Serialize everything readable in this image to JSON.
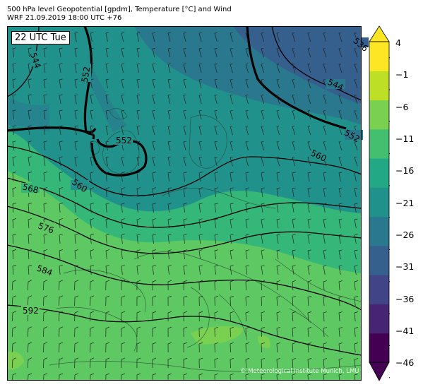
{
  "header": {
    "title": "500 hPa level Geopotential [gpdm], Temperature [°C] and Wind",
    "subtitle": "WRF 21.09.2019 18:00 UTC +76"
  },
  "time_label": "22 UTC Tue",
  "credit": "© Meteorological Institute Munich, LMU",
  "colorbar": {
    "ticks": [
      "4",
      "−1",
      "−6",
      "−11",
      "−16",
      "−21",
      "−26",
      "−31",
      "−36",
      "−41",
      "−46"
    ],
    "colors_bottom_to_top": [
      "#440154",
      "#482475",
      "#414487",
      "#355f8d",
      "#2a788e",
      "#21918c",
      "#22a884",
      "#44bf70",
      "#7ad151",
      "#bddf26",
      "#fde725"
    ]
  },
  "contour_labels": [
    "536",
    "544",
    "544",
    "552",
    "552",
    "552",
    "560",
    "560",
    "568",
    "576",
    "584",
    "592"
  ]
}
